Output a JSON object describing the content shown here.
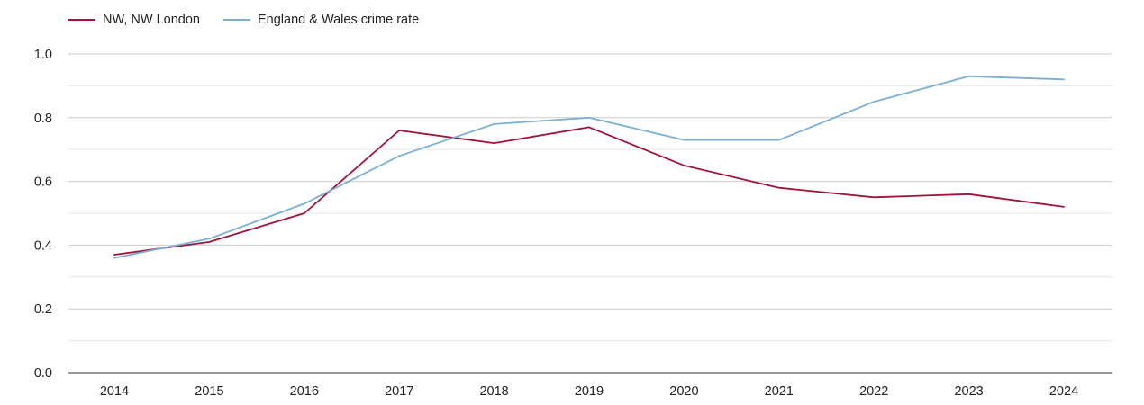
{
  "chart_data": {
    "type": "line",
    "title": "",
    "xlabel": "",
    "ylabel": "",
    "x": [
      "2014",
      "2015",
      "2016",
      "2017",
      "2018",
      "2019",
      "2020",
      "2021",
      "2022",
      "2023",
      "2024"
    ],
    "ylim": [
      0,
      1.0
    ],
    "yticks": [
      "0.0",
      "0.2",
      "0.4",
      "0.6",
      "0.8",
      "1.0"
    ],
    "grid": true,
    "legend_position": "top-left",
    "series": [
      {
        "name": "NW, NW London",
        "color": "#a0123a",
        "values": [
          0.37,
          0.41,
          0.5,
          0.76,
          0.72,
          0.77,
          0.65,
          0.58,
          0.55,
          0.56,
          0.52
        ]
      },
      {
        "name": "England & Wales crime rate",
        "color": "#7bafd4",
        "values": [
          0.36,
          0.42,
          0.53,
          0.68,
          0.78,
          0.8,
          0.73,
          0.73,
          0.85,
          0.93,
          0.92
        ]
      }
    ]
  }
}
